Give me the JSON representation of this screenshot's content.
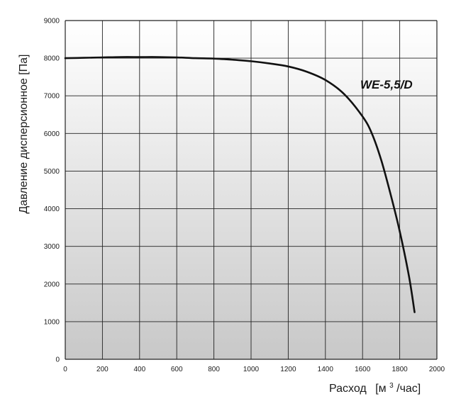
{
  "chart_data": {
    "type": "line",
    "title": "",
    "xlabel": "Расход",
    "xlabel_unit_prefix": "[м",
    "xlabel_unit_sup": "3",
    "xlabel_unit_suffix": "/час]",
    "ylabel": "Давление дисперсионное [Па]",
    "xlim": [
      0,
      2000
    ],
    "ylim": [
      0,
      9000
    ],
    "x_ticks": [
      0,
      200,
      400,
      600,
      800,
      1000,
      1200,
      1400,
      1600,
      1800,
      2000
    ],
    "y_ticks": [
      0,
      1000,
      2000,
      3000,
      4000,
      5000,
      6000,
      7000,
      8000,
      9000
    ],
    "grid": true,
    "legend": "none",
    "colors": {
      "line": "#111111",
      "grid": "#222222",
      "background_top": "#ffffff",
      "background_bottom": "#c8c8c8"
    },
    "series": [
      {
        "name": "WE-5,5/D",
        "x": [
          0,
          100,
          200,
          300,
          400,
          500,
          600,
          700,
          800,
          900,
          1000,
          1100,
          1200,
          1300,
          1400,
          1500,
          1600,
          1650,
          1700,
          1750,
          1800,
          1850,
          1880
        ],
        "y": [
          8000,
          8010,
          8020,
          8030,
          8030,
          8030,
          8020,
          8000,
          7990,
          7960,
          7920,
          7860,
          7780,
          7640,
          7420,
          7050,
          6450,
          6000,
          5300,
          4400,
          3400,
          2200,
          1250
        ]
      }
    ]
  }
}
